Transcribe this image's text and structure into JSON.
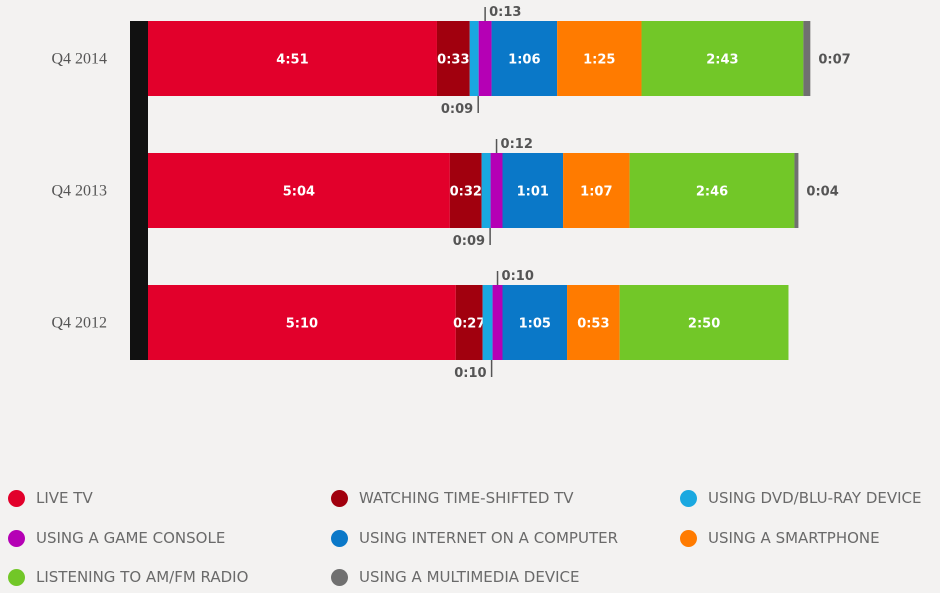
{
  "chart_data": {
    "type": "bar",
    "orientation": "horizontal",
    "stacked": true,
    "title": "",
    "xlabel": "",
    "ylabel": "",
    "grid": false,
    "legend_position": "bottom",
    "categories": [
      "Q4 2014",
      "Q4 2013",
      "Q4 2012"
    ],
    "series": [
      {
        "name": "LIVE TV",
        "color": "#e2002b",
        "values": [
          "4:51",
          "5:04",
          "5:10"
        ],
        "minutes": [
          291,
          304,
          310
        ],
        "label_position": "inside"
      },
      {
        "name": "WATCHING TIME-SHIFTED TV",
        "color": "#a1000e",
        "values": [
          "0:33",
          "0:32",
          "0:27"
        ],
        "minutes": [
          33,
          32,
          27
        ],
        "label_position": "inside"
      },
      {
        "name": "USING DVD/BLU-RAY DEVICE",
        "color": "#1aa8e0",
        "values": [
          "0:09",
          "0:09",
          "0:10"
        ],
        "minutes": [
          9,
          9,
          10
        ],
        "label_position": "below"
      },
      {
        "name": "USING A GAME CONSOLE",
        "color": "#b500b5",
        "values": [
          "0:13",
          "0:12",
          "0:10"
        ],
        "minutes": [
          13,
          12,
          10
        ],
        "label_position": "above"
      },
      {
        "name": "USING INTERNET ON A COMPUTER",
        "color": "#0a78c8",
        "values": [
          "1:06",
          "1:01",
          "1:05"
        ],
        "minutes": [
          66,
          61,
          65
        ],
        "label_position": "inside"
      },
      {
        "name": "USING A SMARTPHONE",
        "color": "#ff7b00",
        "values": [
          "1:25",
          "1:07",
          "0:53"
        ],
        "minutes": [
          85,
          67,
          53
        ],
        "label_position": "inside"
      },
      {
        "name": "LISTENING TO AM/FM RADIO",
        "color": "#72c728",
        "values": [
          "2:43",
          "2:46",
          "2:50"
        ],
        "minutes": [
          163,
          166,
          170
        ],
        "label_position": "inside"
      },
      {
        "name": "USING A MULTIMEDIA DEVICE",
        "color": "#707070",
        "values": [
          "0:07",
          "0:04",
          ""
        ],
        "minutes": [
          7,
          4,
          0
        ],
        "label_position": "right"
      }
    ]
  }
}
